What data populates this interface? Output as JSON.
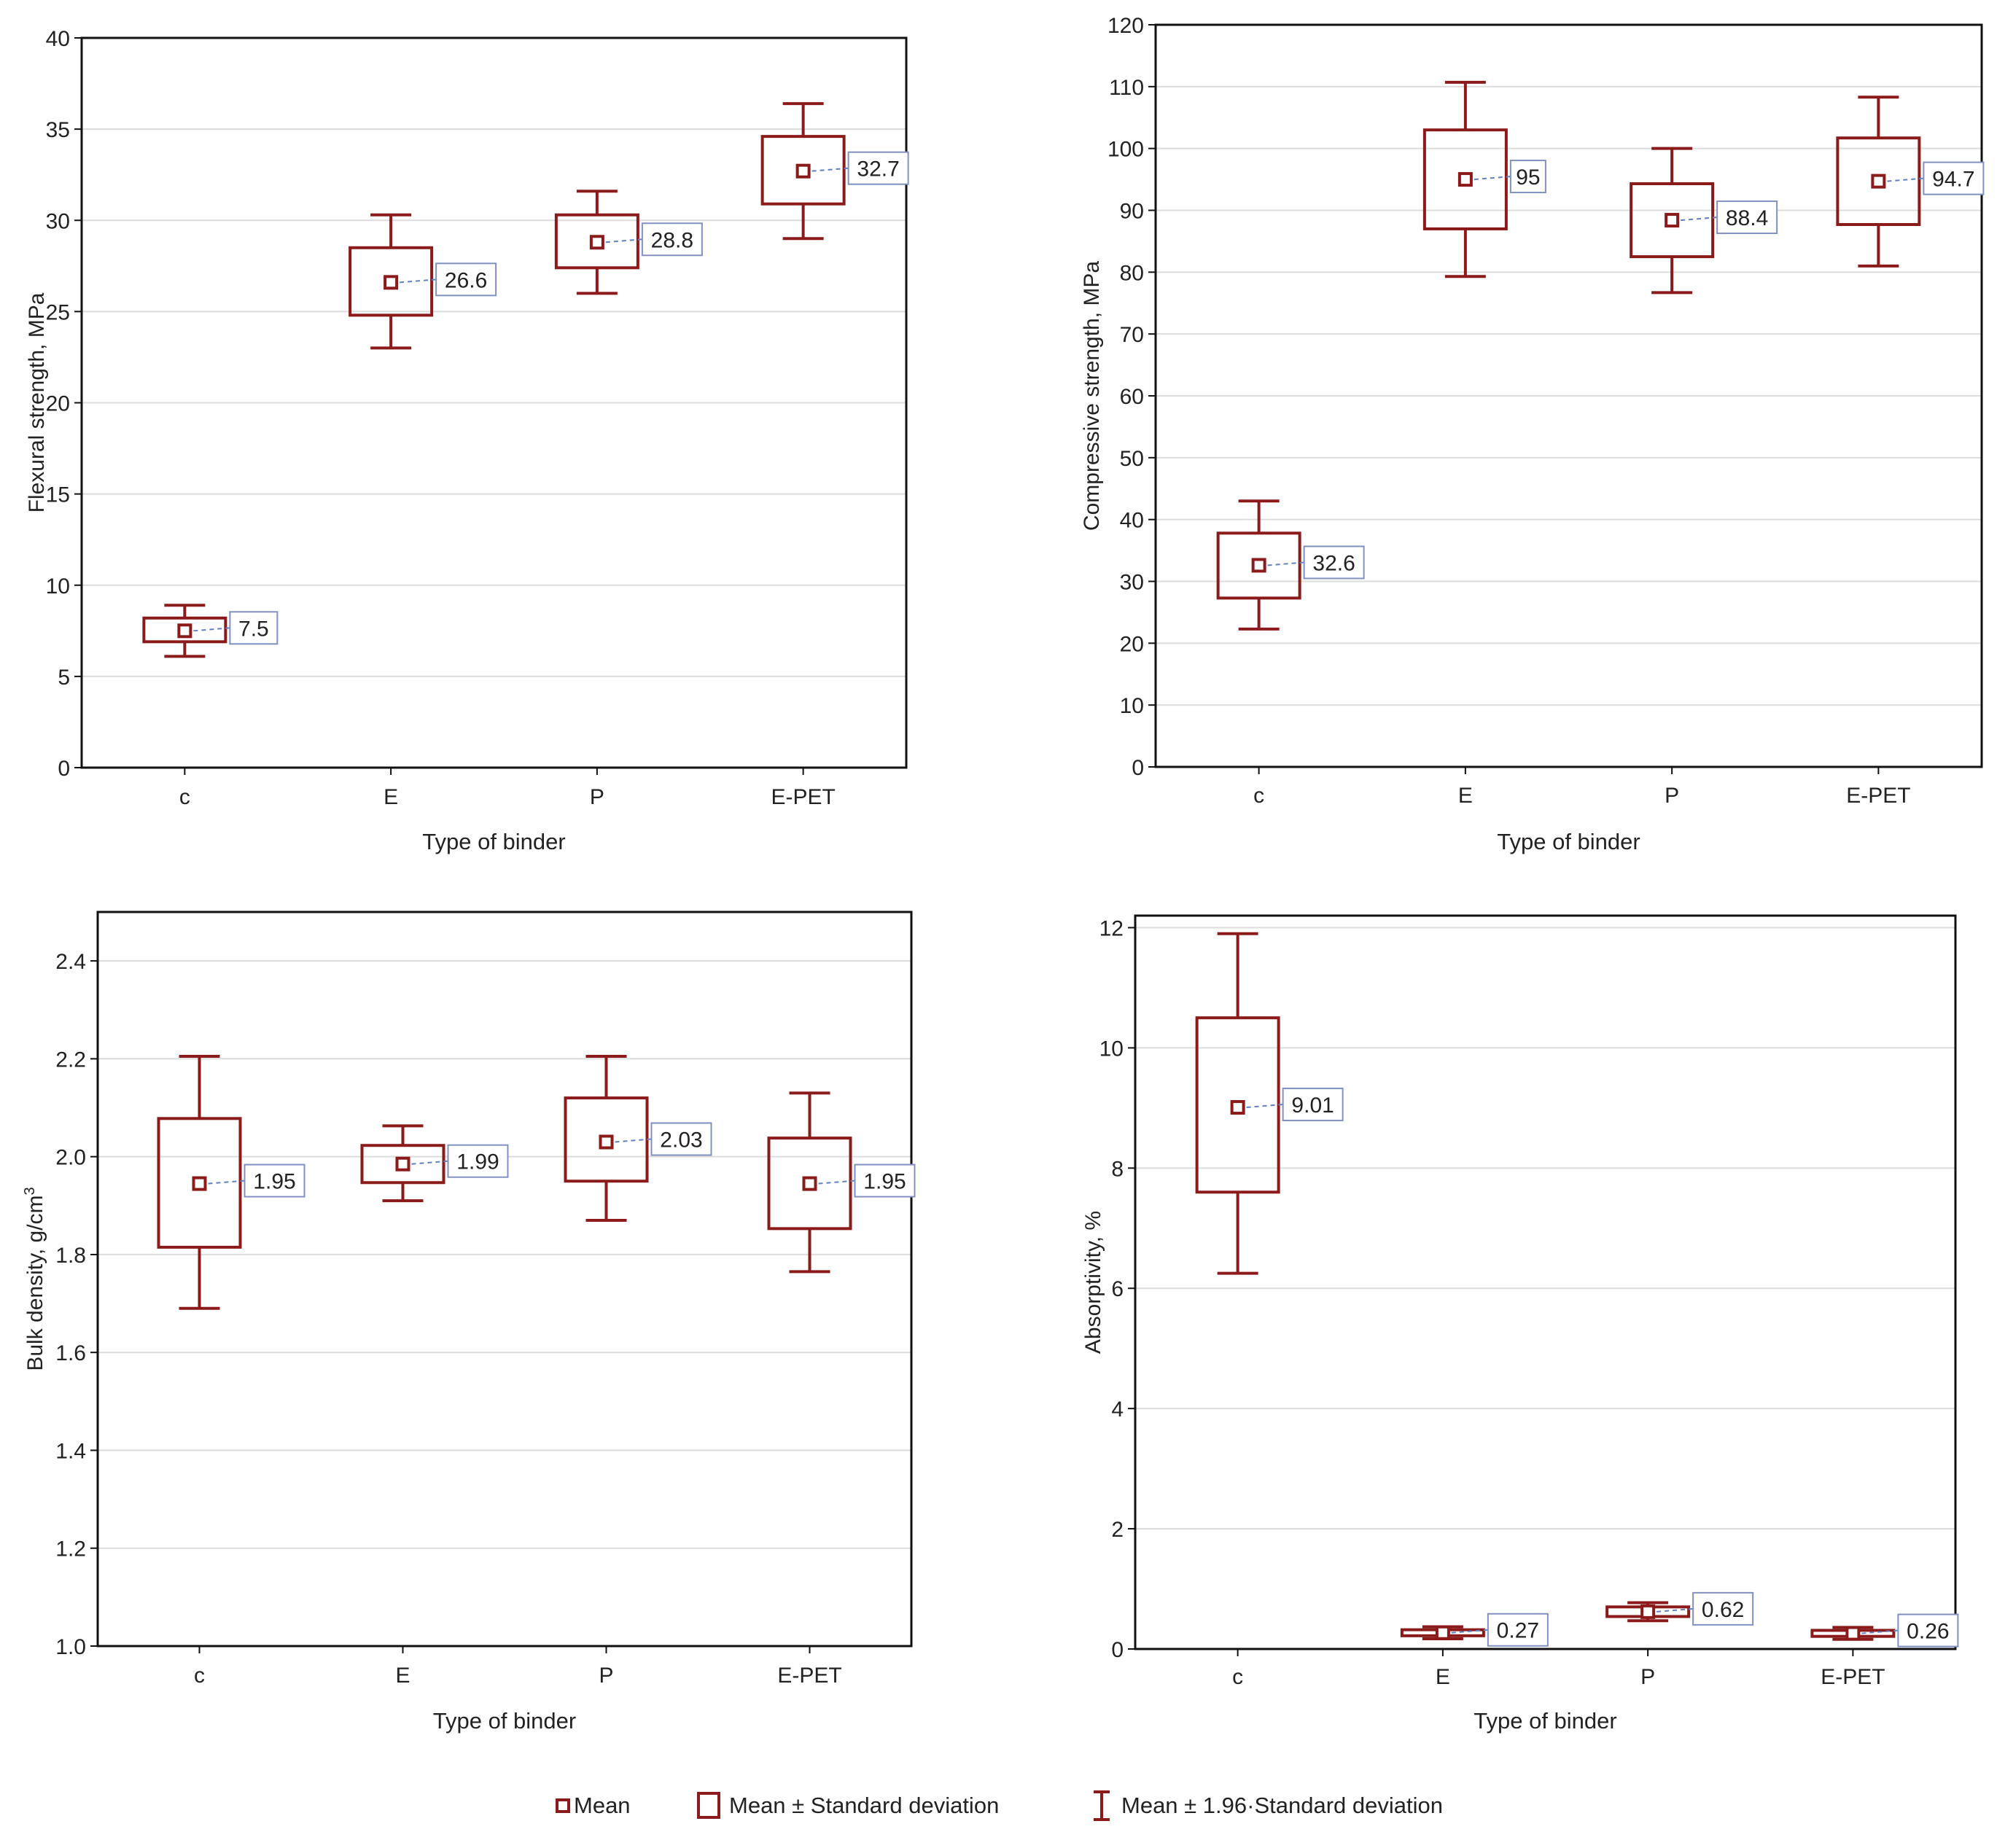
{
  "colors": {
    "series": "#8b1a1a",
    "grid": "#dcdcdc",
    "frame": "#111111",
    "label_border": "#8090c0",
    "label_leader": "#6080c0"
  },
  "chart_data": [
    {
      "type": "box",
      "panel": "top-left",
      "title": "",
      "xlabel": "Type of binder",
      "ylabel": "Flexural strength, MPa",
      "ylim": [
        0,
        40
      ],
      "yticks": [
        0,
        5,
        10,
        15,
        20,
        25,
        30,
        35,
        40
      ],
      "ytick_labels": [
        "0",
        "5",
        "10",
        "15",
        "20",
        "25",
        "30",
        "35",
        "40"
      ],
      "categories": [
        "c",
        "E",
        "P",
        "E-PET"
      ],
      "mean_labels": [
        "7.5",
        "26.6",
        "28.8",
        "32.7"
      ],
      "mean": [
        7.5,
        26.6,
        28.8,
        32.7
      ],
      "sd_low": [
        6.9,
        24.8,
        27.4,
        30.9
      ],
      "sd_high": [
        8.2,
        28.5,
        30.3,
        34.6
      ],
      "ci196_low": [
        6.1,
        23.0,
        26.0,
        29.0
      ],
      "ci196_high": [
        8.9,
        30.3,
        31.6,
        36.4
      ]
    },
    {
      "type": "box",
      "panel": "top-right",
      "title": "",
      "xlabel": "Type of binder",
      "ylabel": "Compressive strength, MPa",
      "ylim": [
        0,
        120
      ],
      "yticks": [
        0,
        10,
        20,
        30,
        40,
        50,
        60,
        70,
        80,
        90,
        100,
        110,
        120
      ],
      "ytick_labels": [
        "0",
        "10",
        "20",
        "30",
        "40",
        "50",
        "60",
        "70",
        "80",
        "90",
        "100",
        "110",
        "120"
      ],
      "categories": [
        "c",
        "E",
        "P",
        "E-PET"
      ],
      "mean_labels": [
        "32.6",
        "95",
        "88.4",
        "94.7"
      ],
      "mean": [
        32.6,
        95.0,
        88.4,
        94.7
      ],
      "sd_low": [
        27.3,
        87.0,
        82.5,
        87.7
      ],
      "sd_high": [
        37.8,
        103.0,
        94.3,
        101.7
      ],
      "ci196_low": [
        22.3,
        79.3,
        76.7,
        81.0
      ],
      "ci196_high": [
        43.0,
        110.7,
        100.0,
        108.3
      ]
    },
    {
      "type": "box",
      "panel": "bottom-left",
      "title": "",
      "xlabel": "Type of binder",
      "ylabel": "Bulk density, g/cm",
      "ylabel_superscript": "3",
      "ylim": [
        1.0,
        2.5
      ],
      "yticks": [
        1.0,
        1.2,
        1.4,
        1.6,
        1.8,
        2.0,
        2.2,
        2.4
      ],
      "ytick_labels": [
        "1.0",
        "1.2",
        "1.4",
        "1.6",
        "1.8",
        "2.0",
        "2.2",
        "2.4"
      ],
      "categories": [
        "c",
        "E",
        "P",
        "E-PET"
      ],
      "mean_labels": [
        "1.95",
        "1.99",
        "2.03",
        "1.95"
      ],
      "mean": [
        1.945,
        1.985,
        2.03,
        1.945
      ],
      "sd_low": [
        1.815,
        1.947,
        1.95,
        1.853
      ],
      "sd_high": [
        2.078,
        2.023,
        2.12,
        2.038
      ],
      "ci196_low": [
        1.69,
        1.91,
        1.87,
        1.765
      ],
      "ci196_high": [
        2.205,
        2.063,
        2.205,
        2.13
      ]
    },
    {
      "type": "box",
      "panel": "bottom-right",
      "title": "",
      "xlabel": "Type of binder",
      "ylabel": "Absorptivity, %",
      "ylim": [
        0,
        12.2
      ],
      "yticks": [
        0,
        2,
        4,
        6,
        8,
        10,
        12
      ],
      "ytick_labels": [
        "0",
        "2",
        "4",
        "6",
        "8",
        "10",
        "12"
      ],
      "categories": [
        "c",
        "E",
        "P",
        "E-PET"
      ],
      "mean_labels": [
        "9.01",
        "0.27",
        "0.62",
        "0.26"
      ],
      "mean": [
        9.01,
        0.27,
        0.62,
        0.26
      ],
      "sd_low": [
        7.6,
        0.22,
        0.54,
        0.21
      ],
      "sd_high": [
        10.5,
        0.32,
        0.7,
        0.31
      ],
      "ci196_low": [
        6.25,
        0.17,
        0.47,
        0.16
      ],
      "ci196_high": [
        11.9,
        0.37,
        0.77,
        0.36
      ]
    }
  ],
  "legend": {
    "placement": "bottom-center",
    "items": [
      {
        "symbol": "mean-marker",
        "label": "Mean"
      },
      {
        "symbol": "box",
        "label": "Mean ± Standard deviation"
      },
      {
        "symbol": "whisker",
        "label": "Mean ± 1.96·Standard deviation"
      }
    ]
  }
}
